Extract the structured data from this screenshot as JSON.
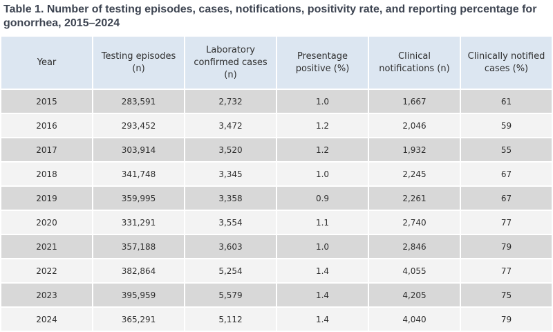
{
  "title": "Table 1. Number of testing episodes, cases, notifications, positivity rate, and reporting percentage for gonorrhea, 2015–2024",
  "headers": {
    "year": "Year",
    "testing": "Testing episodes\n(n)",
    "lab": "Laboratory\nconfirmed cases\n(n)",
    "positive": "Presentage\npositive (%)",
    "clinical": "Clinical\nnotifications (n)",
    "notified": "Clinically notified\ncases (%)"
  },
  "rows": [
    {
      "year": "2015",
      "testing": "283,591",
      "lab": "2,732",
      "positive": "1.0",
      "clinical": "1,667",
      "notified": "61"
    },
    {
      "year": "2016",
      "testing": "293,452",
      "lab": "3,472",
      "positive": "1.2",
      "clinical": "2,046",
      "notified": "59"
    },
    {
      "year": "2017",
      "testing": "303,914",
      "lab": "3,520",
      "positive": "1.2",
      "clinical": "1,932",
      "notified": "55"
    },
    {
      "year": "2018",
      "testing": "341,748",
      "lab": "3,345",
      "positive": "1.0",
      "clinical": "2,245",
      "notified": "67"
    },
    {
      "year": "2019",
      "testing": "359,995",
      "lab": "3,358",
      "positive": "0.9",
      "clinical": "2,261",
      "notified": "67"
    },
    {
      "year": "2020",
      "testing": "331,291",
      "lab": "3,554",
      "positive": "1.1",
      "clinical": "2,740",
      "notified": "77"
    },
    {
      "year": "2021",
      "testing": "357,188",
      "lab": "3,603",
      "positive": "1.0",
      "clinical": "2,846",
      "notified": "79"
    },
    {
      "year": "2022",
      "testing": "382,864",
      "lab": "5,254",
      "positive": "1.4",
      "clinical": "4,055",
      "notified": "77"
    },
    {
      "year": "2023",
      "testing": "395,959",
      "lab": "5,579",
      "positive": "1.4",
      "clinical": "4,205",
      "notified": "75"
    },
    {
      "year": "2024",
      "testing": "365,291",
      "lab": "5,112",
      "positive": "1.4",
      "clinical": "4,040",
      "notified": "79"
    }
  ]
}
